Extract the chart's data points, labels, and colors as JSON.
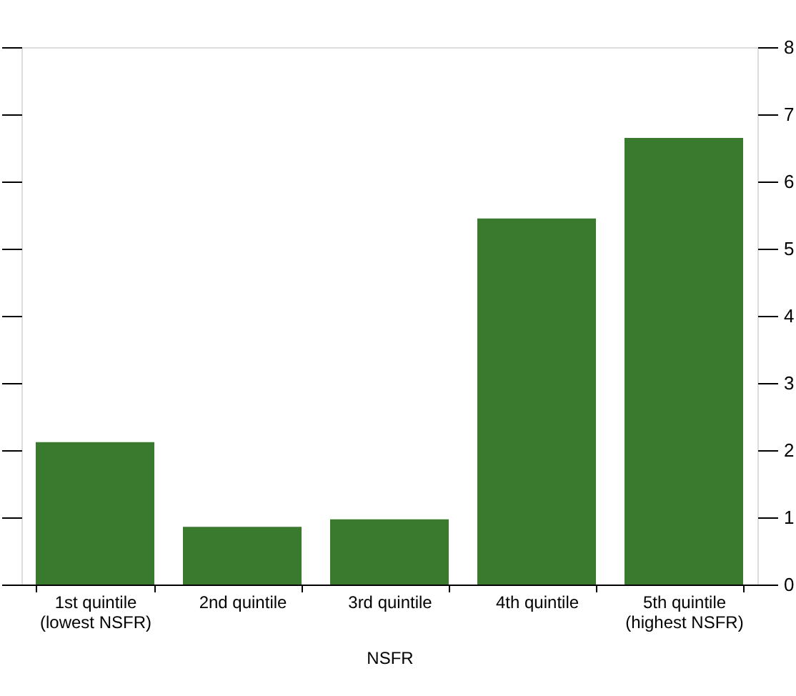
{
  "chart_data": {
    "type": "bar",
    "xlabel": "NSFR",
    "categories": [
      "1st quintile\n(lowest NSFR)",
      "2nd quintile",
      "3rd quintile",
      "4th quintile",
      "5th quintile\n(highest NSFR)"
    ],
    "series": [
      {
        "values": [
          2.12,
          0.86,
          0.97,
          5.45,
          6.65
        ],
        "color": "#3a7a2e",
        "axis": "y2"
      }
    ],
    "y2lim": [
      0,
      8
    ],
    "y2ticks": [
      0,
      1,
      2,
      3,
      4,
      5,
      6,
      7,
      8
    ],
    "grid": false
  }
}
